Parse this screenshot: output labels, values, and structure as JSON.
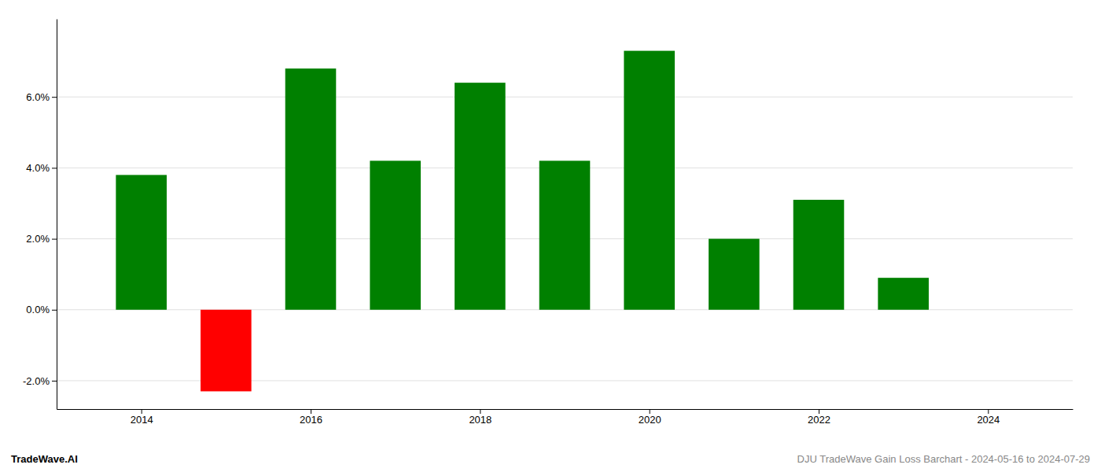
{
  "chart_data": {
    "type": "bar",
    "x": [
      2014,
      2015,
      2016,
      2017,
      2018,
      2019,
      2020,
      2021,
      2022,
      2023
    ],
    "values": [
      0.038,
      -0.023,
      0.068,
      0.042,
      0.064,
      0.042,
      0.073,
      0.02,
      0.031,
      0.009
    ],
    "colors": [
      "#008000",
      "#ff0000",
      "#008000",
      "#008000",
      "#008000",
      "#008000",
      "#008000",
      "#008000",
      "#008000",
      "#008000"
    ],
    "xlim": [
      2013.0,
      2025.0
    ],
    "xticks": [
      2014,
      2016,
      2018,
      2020,
      2022,
      2024
    ],
    "ylim": [
      -0.028,
      0.082
    ],
    "yticks": [
      {
        "value": -0.02,
        "label": "-2.0%"
      },
      {
        "value": 0.0,
        "label": "0.0%"
      },
      {
        "value": 0.02,
        "label": "2.0%"
      },
      {
        "value": 0.04,
        "label": "4.0%"
      },
      {
        "value": 0.06,
        "label": "6.0%"
      }
    ],
    "grid": true,
    "annotations": [
      "TradeWave.AI",
      "DJU TradeWave Gain Loss Barchart - 2024-05-16 to 2024-07-29"
    ]
  }
}
